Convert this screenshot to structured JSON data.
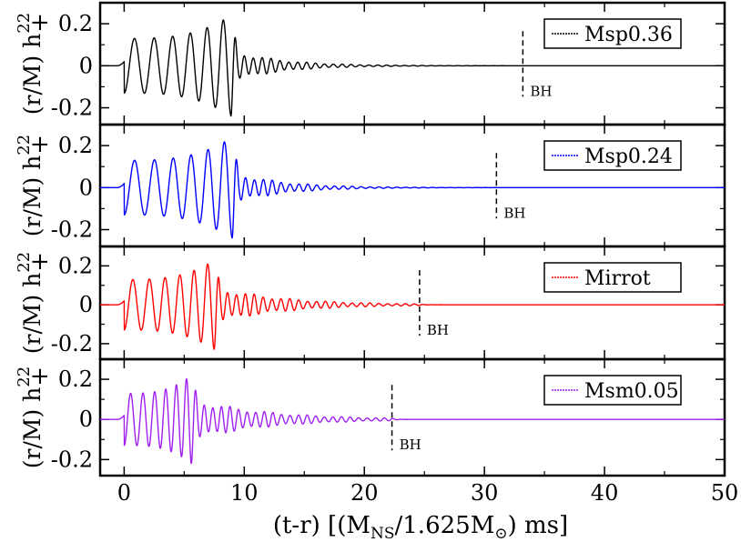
{
  "chart_data": {
    "type": "line",
    "xlabel": {
      "main": "(t-r) [(M",
      "sub": "NS",
      "mid": "/1.625M",
      "sub2": "⊙",
      "tail": ") ms]"
    },
    "ylabel": {
      "prefix": "(r/M) h",
      "sup": "22",
      "sub": "+"
    },
    "xlim": [
      -2,
      50
    ],
    "ylim": [
      -0.28,
      0.3
    ],
    "x_ticks": [
      0,
      10,
      20,
      30,
      40,
      50
    ],
    "x_tick_labels": [
      "0",
      "10",
      "20",
      "30",
      "40",
      "50"
    ],
    "y_ticks": [
      -0.2,
      0,
      0.2
    ],
    "y_tick_labels": [
      "-0.2",
      "0",
      "0.2"
    ],
    "bh_label": "BH",
    "panels": [
      {
        "legend": "Msp0.36",
        "color": "#000000",
        "bh_time": 33.2,
        "inspiral_cycles": 6,
        "inspiral_start_amp": 0.13,
        "peak_amp": 0.24,
        "merger_time": 8.9,
        "post_merger_amp": 0.07,
        "post_merger_freq": 1.35,
        "decay_time": 4.0
      },
      {
        "legend": "Msp0.24",
        "color": "#0000ff",
        "bh_time": 31.0,
        "inspiral_cycles": 6,
        "inspiral_start_amp": 0.13,
        "peak_amp": 0.24,
        "merger_time": 9.0,
        "post_merger_amp": 0.07,
        "post_merger_freq": 1.35,
        "decay_time": 4.0
      },
      {
        "legend": "Mirrot",
        "color": "#ff0000",
        "bh_time": 24.6,
        "inspiral_cycles": 6,
        "inspiral_start_amp": 0.13,
        "peak_amp": 0.23,
        "merger_time": 7.5,
        "post_merger_amp": 0.09,
        "post_merger_freq": 1.35,
        "decay_time": 5.5
      },
      {
        "legend": "Msm0.05",
        "color": "#a020f0",
        "bh_time": 22.3,
        "inspiral_cycles": 6,
        "inspiral_start_amp": 0.13,
        "peak_amp": 0.22,
        "merger_time": 5.6,
        "post_merger_amp": 0.1,
        "post_merger_freq": 1.4,
        "decay_time": 6.0
      }
    ]
  }
}
